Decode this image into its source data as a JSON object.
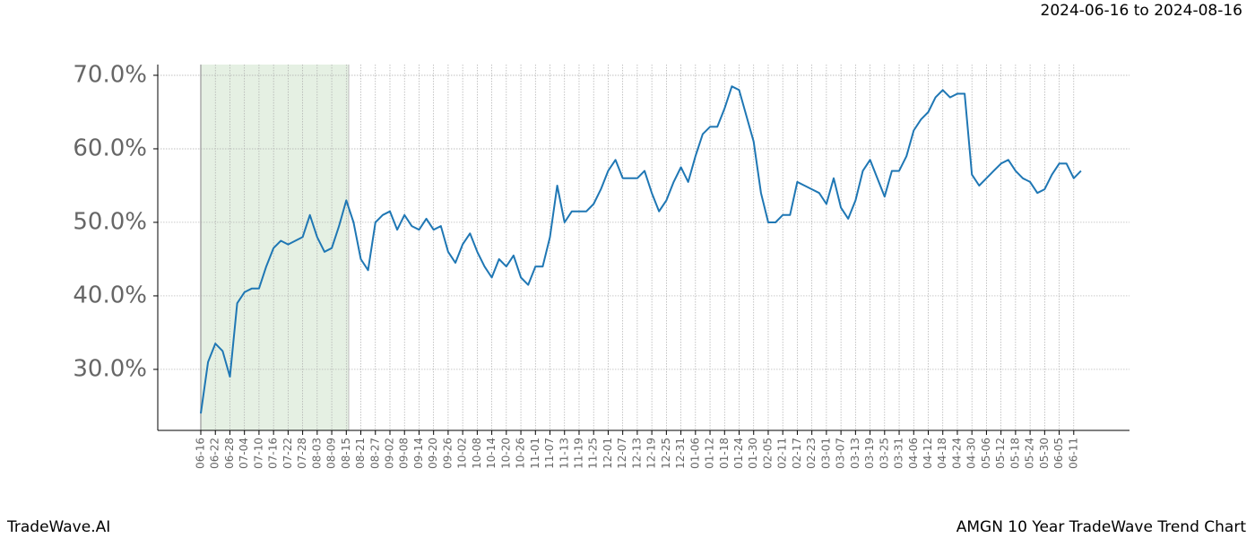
{
  "chart_data": {
    "type": "line",
    "subtitle": "2024-06-16 to 2024-08-16",
    "footer_left": "TradeWave.AI",
    "footer_right": "AMGN 10 Year TradeWave Trend Chart",
    "categories": [
      "06-16",
      null,
      "06-22",
      null,
      "06-28",
      null,
      "07-04",
      null,
      "07-10",
      null,
      "07-16",
      null,
      "07-22",
      null,
      "07-28",
      null,
      "08-03",
      null,
      "08-09",
      null,
      "08-15",
      null,
      "08-21",
      null,
      "08-27",
      null,
      "09-02",
      null,
      "09-08",
      null,
      "09-14",
      null,
      "09-20",
      null,
      "09-26",
      null,
      "10-02",
      null,
      "10-08",
      null,
      "10-14",
      null,
      "10-20",
      null,
      "10-26",
      null,
      "11-01",
      null,
      "11-07",
      null,
      "11-13",
      null,
      "11-19",
      null,
      "11-25",
      null,
      "12-01",
      null,
      "12-07",
      null,
      "12-13",
      null,
      "12-19",
      null,
      "12-25",
      null,
      "12-31",
      null,
      "01-06",
      null,
      "01-12",
      null,
      "01-18",
      null,
      "01-24",
      null,
      "01-30",
      null,
      "02-05",
      null,
      "02-11",
      null,
      "02-17",
      null,
      "02-23",
      null,
      "03-01",
      null,
      "03-07",
      null,
      "03-13",
      null,
      "03-19",
      null,
      "03-25",
      null,
      "03-31",
      null,
      "04-06",
      null,
      "04-12",
      null,
      "04-18",
      null,
      "04-24",
      null,
      "04-30",
      null,
      "05-06",
      null,
      "05-12",
      null,
      "05-18",
      null,
      "05-24",
      null,
      "05-30",
      null,
      "06-05",
      null,
      "06-11",
      null
    ],
    "series": [
      {
        "color": "#1f77b4",
        "values": [
          24,
          31,
          33.5,
          32.5,
          29,
          39,
          40.5,
          41,
          41,
          44,
          46.5,
          47.5,
          47,
          47.5,
          48,
          51,
          48,
          46,
          46.5,
          49.5,
          53,
          50,
          45,
          43.5,
          50,
          51,
          51.5,
          49,
          51,
          49.5,
          49,
          50.5,
          49,
          49.5,
          46,
          44.5,
          47,
          48.5,
          46,
          44,
          42.5,
          45,
          44,
          45.5,
          42.5,
          41.5,
          44,
          44,
          48,
          55,
          50,
          51.5,
          51.5,
          51.5,
          52.5,
          54.5,
          57,
          58.5,
          56,
          56,
          56,
          57,
          54,
          51.5,
          53,
          55.5,
          57.5,
          55.5,
          59,
          62,
          63,
          63,
          65.5,
          68.5,
          68,
          64.5,
          61,
          54,
          50,
          50,
          51,
          51,
          55.5,
          55,
          54.5,
          54,
          52.5,
          56,
          52,
          50.5,
          53,
          57,
          58.5,
          56,
          53.5,
          57,
          57,
          59,
          62.5,
          64,
          65,
          67,
          68,
          67,
          67.5,
          67.5,
          56.5,
          55,
          56,
          57,
          58,
          58.5,
          57,
          56,
          55.5,
          54,
          54.5,
          56.5,
          58,
          58,
          56,
          57
        ]
      }
    ],
    "ylim": [
      21.7,
      71.46
    ],
    "yticks": [
      {
        "value": 30,
        "label": "30.0%"
      },
      {
        "value": 40,
        "label": "40.0%"
      },
      {
        "value": 50,
        "label": "50.0%"
      },
      {
        "value": 60,
        "label": "60.0%"
      },
      {
        "value": 70,
        "label": "70.0%"
      }
    ],
    "grid": true,
    "highlight_color": "#e5f0e3"
  }
}
